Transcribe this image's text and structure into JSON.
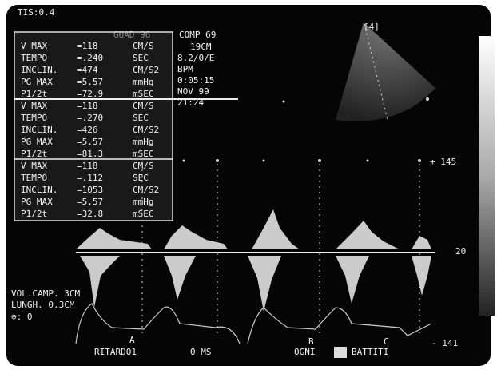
{
  "header": {
    "tis": "TIS:0.4",
    "gain": "GUAD 96",
    "comp": "COMP 69",
    "depth": "19CM",
    "settings": "8.2/0/E",
    "rate": "BPM",
    "timer": "0:05:15",
    "date": "NOV 99",
    "time": "21:24",
    "probe": "[4]"
  },
  "measurements": [
    {
      "rows": [
        {
          "label": "V MAX",
          "value": "=118",
          "unit": "CM/S"
        },
        {
          "label": "TEMPO",
          "value": "=.240",
          "unit": "SEC"
        },
        {
          "label": "INCLIN.",
          "value": "=474",
          "unit": "CM/S2"
        },
        {
          "label": "PG MAX",
          "value": "=5.57",
          "unit": "mmHg"
        },
        {
          "label": "P1/2t",
          "value": "=72.9",
          "unit": "mSEC"
        }
      ]
    },
    {
      "rows": [
        {
          "label": "V MAX",
          "value": "=118",
          "unit": "CM/S"
        },
        {
          "label": "TEMPO",
          "value": "=.270",
          "unit": "SEC"
        },
        {
          "label": "INCLIN.",
          "value": "=426",
          "unit": "CM/S2"
        },
        {
          "label": "PG MAX",
          "value": "=5.57",
          "unit": "mmHg"
        },
        {
          "label": "P1/2t",
          "value": "=81.3",
          "unit": "mSEC"
        }
      ]
    },
    {
      "rows": [
        {
          "label": "V MAX",
          "value": "=118",
          "unit": "CM/S"
        },
        {
          "label": "TEMPO",
          "value": "=.112",
          "unit": "SEC"
        },
        {
          "label": "INCLIN.",
          "value": "=1053",
          "unit": "CM/S2"
        },
        {
          "label": "PG MAX",
          "value": "=5.57",
          "unit": "mmHg"
        },
        {
          "label": "P1/2t",
          "value": "=32.8",
          "unit": "mSEC"
        }
      ]
    }
  ],
  "scale": {
    "top": "+ 145",
    "baseline": "20",
    "bottom": "- 141"
  },
  "sample": {
    "volume": "VOL.CAMP.  3CM",
    "length": "LUNGH.  0.3CM",
    "angle": "⊕:  0"
  },
  "markers": [
    "A",
    "B",
    "C"
  ],
  "footer": {
    "delay": "RITARDO1",
    "ms": "0 MS",
    "every": "OGNI",
    "beats": "BATTITI"
  }
}
